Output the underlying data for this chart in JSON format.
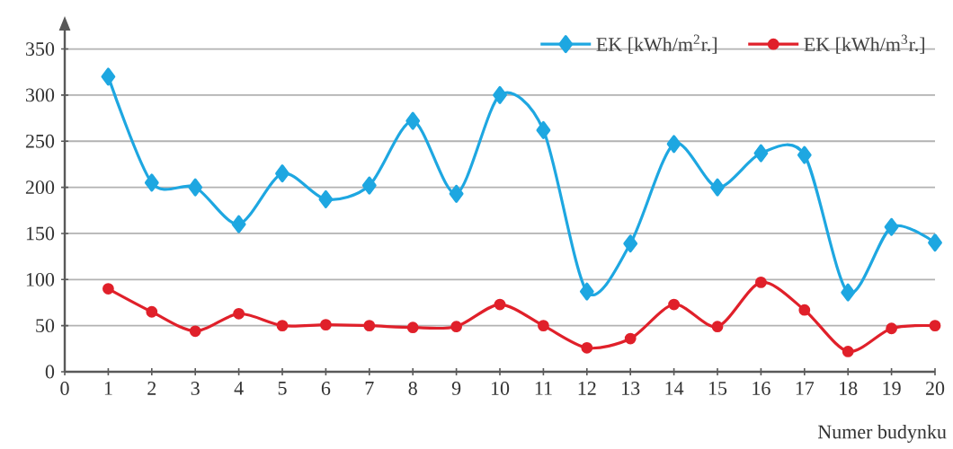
{
  "chart_data": {
    "type": "line",
    "xlabel": "Numer budynku",
    "x": [
      1,
      2,
      3,
      4,
      5,
      6,
      7,
      8,
      9,
      10,
      11,
      12,
      13,
      14,
      15,
      16,
      17,
      18,
      19,
      20
    ],
    "series": [
      {
        "name": "EK [kWh/m$^{2}$r.]",
        "color": "#1ea7e1",
        "marker": "diamond",
        "values": [
          320,
          205,
          200,
          160,
          215,
          187,
          202,
          272,
          193,
          300,
          262,
          87,
          139,
          247,
          200,
          237,
          235,
          86,
          157,
          140
        ]
      },
      {
        "name": "EK [kWh/m$^{3}$r.]",
        "color": "#e0202a",
        "marker": "circle",
        "values": [
          90,
          65,
          44,
          63,
          50,
          51,
          50,
          48,
          49,
          73,
          50,
          26,
          36,
          73,
          49,
          97,
          67,
          22,
          47,
          50
        ]
      }
    ],
    "xlim": [
      0,
      20
    ],
    "xticks": [
      0,
      1,
      2,
      3,
      4,
      5,
      6,
      7,
      8,
      9,
      10,
      11,
      12,
      13,
      14,
      15,
      16,
      17,
      18,
      19,
      20
    ],
    "ylim": [
      0,
      370
    ],
    "yticks": [
      0,
      50,
      100,
      150,
      200,
      250,
      300,
      350
    ],
    "grid": "y",
    "legend": "top right",
    "line_style": "solid"
  }
}
